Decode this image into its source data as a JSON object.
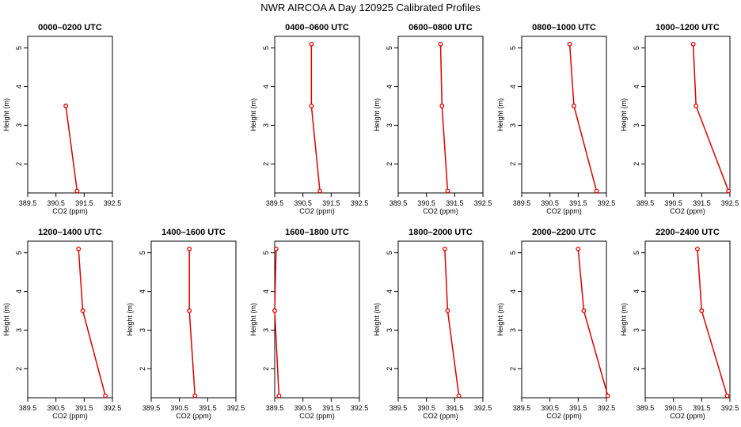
{
  "title": "NWR AIRCOA A  Day 120925  Calibrated Profiles",
  "colors": {
    "series": "#dd0000",
    "axis": "#000000",
    "background": "#ffffff"
  },
  "chart_data": [
    {
      "type": "line",
      "title": "0000–0200 UTC",
      "xlabel": "CO2 (ppm)",
      "ylabel": "Height (m)",
      "xlim": [
        389.5,
        392.5
      ],
      "ylim": [
        1.25,
        5.3
      ],
      "grid": false,
      "xticks": [
        "389.5",
        "390.5",
        "391.5",
        "392.5"
      ],
      "yticks": [
        "2",
        "3",
        "4",
        "5"
      ],
      "points": [
        {
          "x": 391.25,
          "y": 1.3
        },
        {
          "x": 390.85,
          "y": 3.5
        }
      ]
    },
    {
      "type": "line",
      "title": "",
      "xlabel": "",
      "ylabel": "",
      "empty": true,
      "points": []
    },
    {
      "type": "line",
      "title": "0400–0600 UTC",
      "xlabel": "CO2 (ppm)",
      "ylabel": "Height (m)",
      "xlim": [
        389.5,
        392.5
      ],
      "ylim": [
        1.25,
        5.3
      ],
      "grid": false,
      "xticks": [
        "389.5",
        "390.5",
        "391.5",
        "392.5"
      ],
      "yticks": [
        "2",
        "3",
        "4",
        "5"
      ],
      "points": [
        {
          "x": 390.8,
          "y": 5.1
        },
        {
          "x": 390.8,
          "y": 3.5
        },
        {
          "x": 391.1,
          "y": 1.3
        }
      ]
    },
    {
      "type": "line",
      "title": "0600–0800 UTC",
      "xlabel": "CO2 (ppm)",
      "ylabel": "Height (m)",
      "xlim": [
        389.5,
        392.5
      ],
      "ylim": [
        1.25,
        5.3
      ],
      "grid": false,
      "xticks": [
        "389.5",
        "390.5",
        "391.5",
        "392.5"
      ],
      "yticks": [
        "2",
        "3",
        "4",
        "5"
      ],
      "points": [
        {
          "x": 391.0,
          "y": 5.1
        },
        {
          "x": 391.05,
          "y": 3.5
        },
        {
          "x": 391.25,
          "y": 1.3
        }
      ]
    },
    {
      "type": "line",
      "title": "0800–1000 UTC",
      "xlabel": "CO2 (ppm)",
      "ylabel": "Height (m)",
      "xlim": [
        389.5,
        392.5
      ],
      "ylim": [
        1.25,
        5.3
      ],
      "grid": false,
      "xticks": [
        "389.5",
        "390.5",
        "391.5",
        "392.5"
      ],
      "yticks": [
        "2",
        "3",
        "4",
        "5"
      ],
      "points": [
        {
          "x": 391.2,
          "y": 5.1
        },
        {
          "x": 391.35,
          "y": 3.5
        },
        {
          "x": 392.15,
          "y": 1.3
        }
      ]
    },
    {
      "type": "line",
      "title": "1000–1200 UTC",
      "xlabel": "CO2 (ppm)",
      "ylabel": "Height (m)",
      "xlim": [
        389.5,
        392.5
      ],
      "ylim": [
        1.25,
        5.3
      ],
      "grid": false,
      "xticks": [
        "389.5",
        "390.5",
        "391.5",
        "392.5"
      ],
      "yticks": [
        "2",
        "3",
        "4",
        "5"
      ],
      "points": [
        {
          "x": 391.2,
          "y": 5.1
        },
        {
          "x": 391.3,
          "y": 3.5
        },
        {
          "x": 392.45,
          "y": 1.3
        }
      ]
    },
    {
      "type": "line",
      "title": "1200–1400 UTC",
      "xlabel": "CO2 (ppm)",
      "ylabel": "Height (m)",
      "xlim": [
        389.5,
        392.5
      ],
      "ylim": [
        1.25,
        5.3
      ],
      "grid": false,
      "xticks": [
        "389.5",
        "390.5",
        "391.5",
        "392.5"
      ],
      "yticks": [
        "2",
        "3",
        "4",
        "5"
      ],
      "points": [
        {
          "x": 391.3,
          "y": 5.1
        },
        {
          "x": 391.45,
          "y": 3.5
        },
        {
          "x": 392.25,
          "y": 1.3
        }
      ]
    },
    {
      "type": "line",
      "title": "1400–1600 UTC",
      "xlabel": "CO2 (ppm)",
      "ylabel": "Height (m)",
      "xlim": [
        389.5,
        392.5
      ],
      "ylim": [
        1.25,
        5.3
      ],
      "grid": false,
      "xticks": [
        "389.5",
        "390.5",
        "391.5",
        "392.5"
      ],
      "yticks": [
        "2",
        "3",
        "4",
        "5"
      ],
      "points": [
        {
          "x": 390.85,
          "y": 5.1
        },
        {
          "x": 390.85,
          "y": 3.5
        },
        {
          "x": 391.05,
          "y": 1.3
        }
      ]
    },
    {
      "type": "line",
      "title": "1600–1800 UTC",
      "xlabel": "CO2 (ppm)",
      "ylabel": "Height (m)",
      "xlim": [
        389.5,
        392.5
      ],
      "ylim": [
        1.25,
        5.3
      ],
      "grid": false,
      "xticks": [
        "389.5",
        "390.5",
        "391.5",
        "392.5"
      ],
      "yticks": [
        "2",
        "3",
        "4",
        "5"
      ],
      "points": [
        {
          "x": 389.55,
          "y": 5.1
        },
        {
          "x": 389.5,
          "y": 3.5
        },
        {
          "x": 389.65,
          "y": 1.3
        }
      ]
    },
    {
      "type": "line",
      "title": "1800–2000 UTC",
      "xlabel": "CO2 (ppm)",
      "ylabel": "Height (m)",
      "xlim": [
        389.5,
        392.5
      ],
      "ylim": [
        1.25,
        5.3
      ],
      "grid": false,
      "xticks": [
        "389.5",
        "390.5",
        "391.5",
        "392.5"
      ],
      "yticks": [
        "2",
        "3",
        "4",
        "5"
      ],
      "points": [
        {
          "x": 391.15,
          "y": 5.1
        },
        {
          "x": 391.25,
          "y": 3.5
        },
        {
          "x": 391.65,
          "y": 1.3
        }
      ]
    },
    {
      "type": "line",
      "title": "2000–2200 UTC",
      "xlabel": "CO2 (ppm)",
      "ylabel": "Height (m)",
      "xlim": [
        389.5,
        392.5
      ],
      "ylim": [
        1.25,
        5.3
      ],
      "grid": false,
      "xticks": [
        "389.5",
        "390.5",
        "391.5",
        "392.5"
      ],
      "yticks": [
        "2",
        "3",
        "4",
        "5"
      ],
      "points": [
        {
          "x": 391.5,
          "y": 5.1
        },
        {
          "x": 391.7,
          "y": 3.5
        },
        {
          "x": 392.55,
          "y": 1.3
        }
      ]
    },
    {
      "type": "line",
      "title": "2200–2400 UTC",
      "xlabel": "CO2 (ppm)",
      "ylabel": "Height (m)",
      "xlim": [
        389.5,
        392.5
      ],
      "ylim": [
        1.25,
        5.3
      ],
      "grid": false,
      "xticks": [
        "389.5",
        "390.5",
        "391.5",
        "392.5"
      ],
      "yticks": [
        "2",
        "3",
        "4",
        "5"
      ],
      "points": [
        {
          "x": 391.35,
          "y": 5.1
        },
        {
          "x": 391.5,
          "y": 3.5
        },
        {
          "x": 392.4,
          "y": 1.3
        }
      ]
    }
  ]
}
